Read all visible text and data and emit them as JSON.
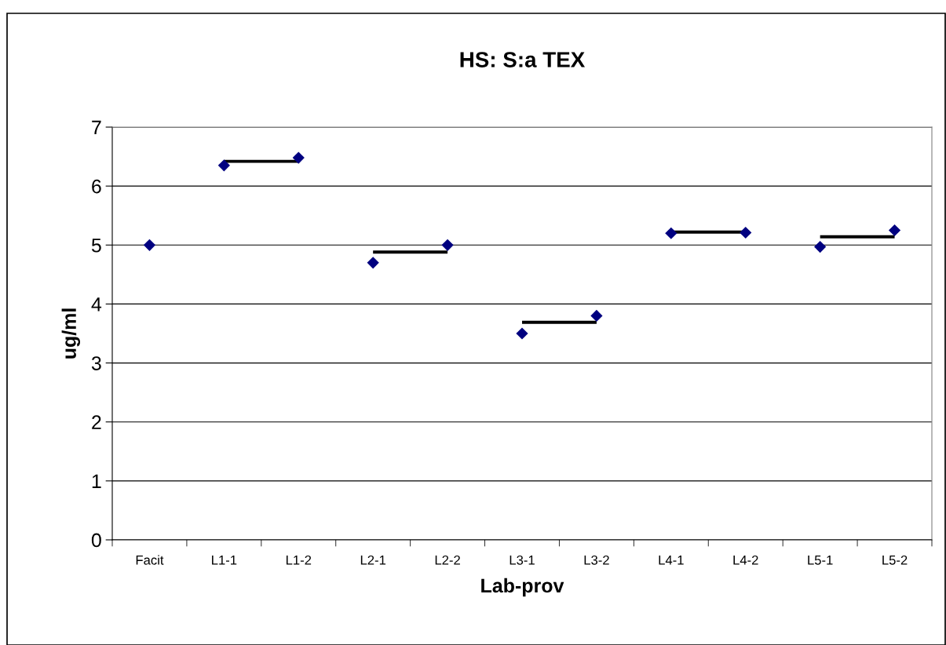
{
  "chart_data": {
    "type": "scatter",
    "title": "HS: S:a TEX",
    "xlabel": "Lab-prov",
    "ylabel": "ug/ml",
    "categories": [
      "Facit",
      "L1-1",
      "L1-2",
      "L2-1",
      "L2-2",
      "L3-1",
      "L3-2",
      "L4-1",
      "L4-2",
      "L5-1",
      "L5-2"
    ],
    "series": [
      {
        "color": "#000080",
        "marker": "diamond",
        "values": [
          5.0,
          6.35,
          6.48,
          4.7,
          5.0,
          3.5,
          3.8,
          5.2,
          5.21,
          4.97,
          5.25
        ]
      },
      {
        "type": "line",
        "color": "#000000",
        "marker": "none",
        "line_style": "solid",
        "x": [
          "L1-1",
          "L1-2",
          null,
          "L2-1",
          "L2-2",
          null,
          "L3-1",
          "L3-2",
          null,
          "L4-1",
          "L4-2",
          null,
          "L5-1",
          "L5-2"
        ],
        "values": [
          6.42,
          6.42,
          null,
          4.88,
          4.88,
          null,
          3.69,
          3.69,
          null,
          5.22,
          5.22,
          null,
          5.14,
          5.14
        ]
      }
    ],
    "ylim": [
      0,
      7
    ],
    "yticks": [
      0,
      1,
      2,
      3,
      4,
      5,
      6,
      7
    ],
    "grid": "y",
    "legend": false
  }
}
